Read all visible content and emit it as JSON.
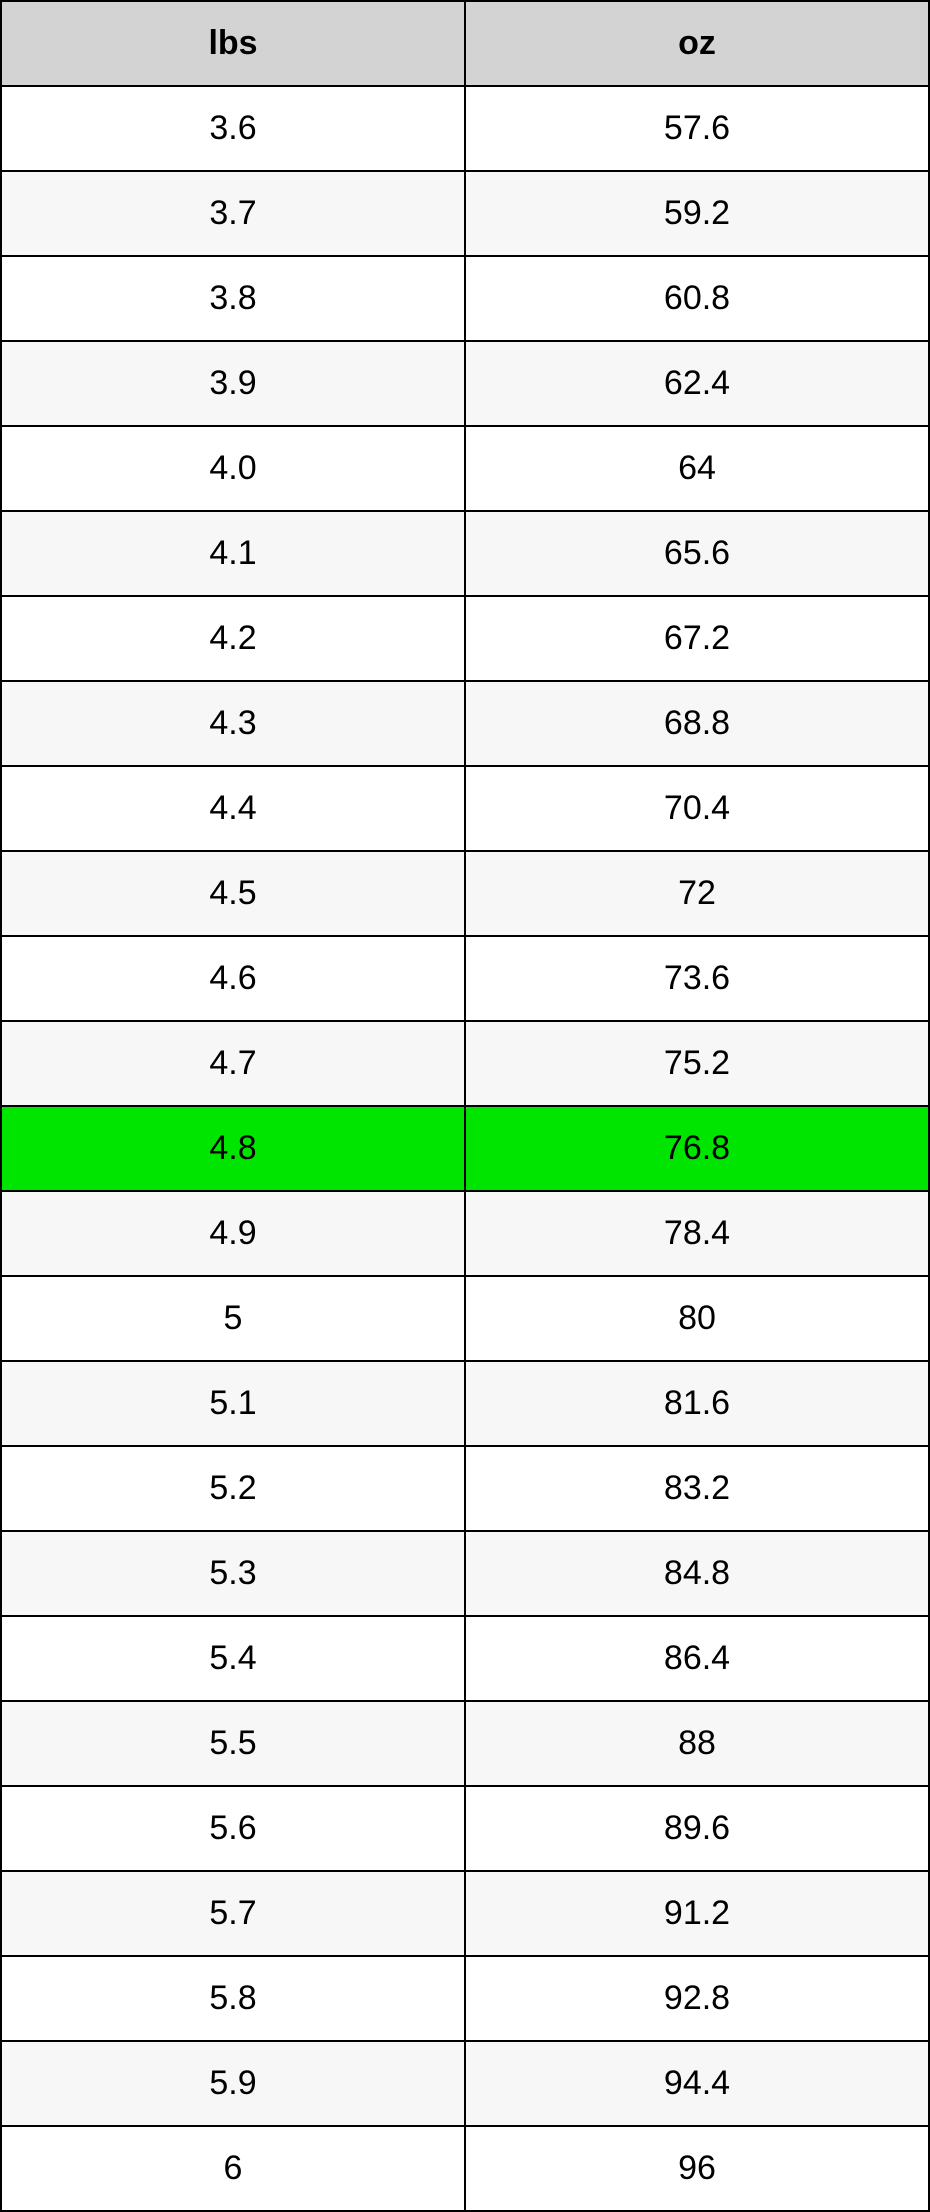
{
  "table": {
    "columns": [
      "lbs",
      "oz"
    ],
    "header_background": "#d3d3d3",
    "border_color": "#000000",
    "row_odd_background": "#ffffff",
    "row_even_background": "#f7f7f7",
    "highlight_background": "#00e500",
    "font_size": 34,
    "highlight_index": 12,
    "rows": [
      {
        "lbs": "3.6",
        "oz": "57.6"
      },
      {
        "lbs": "3.7",
        "oz": "59.2"
      },
      {
        "lbs": "3.8",
        "oz": "60.8"
      },
      {
        "lbs": "3.9",
        "oz": "62.4"
      },
      {
        "lbs": "4.0",
        "oz": "64"
      },
      {
        "lbs": "4.1",
        "oz": "65.6"
      },
      {
        "lbs": "4.2",
        "oz": "67.2"
      },
      {
        "lbs": "4.3",
        "oz": "68.8"
      },
      {
        "lbs": "4.4",
        "oz": "70.4"
      },
      {
        "lbs": "4.5",
        "oz": "72"
      },
      {
        "lbs": "4.6",
        "oz": "73.6"
      },
      {
        "lbs": "4.7",
        "oz": "75.2"
      },
      {
        "lbs": "4.8",
        "oz": "76.8"
      },
      {
        "lbs": "4.9",
        "oz": "78.4"
      },
      {
        "lbs": "5",
        "oz": "80"
      },
      {
        "lbs": "5.1",
        "oz": "81.6"
      },
      {
        "lbs": "5.2",
        "oz": "83.2"
      },
      {
        "lbs": "5.3",
        "oz": "84.8"
      },
      {
        "lbs": "5.4",
        "oz": "86.4"
      },
      {
        "lbs": "5.5",
        "oz": "88"
      },
      {
        "lbs": "5.6",
        "oz": "89.6"
      },
      {
        "lbs": "5.7",
        "oz": "91.2"
      },
      {
        "lbs": "5.8",
        "oz": "92.8"
      },
      {
        "lbs": "5.9",
        "oz": "94.4"
      },
      {
        "lbs": "6",
        "oz": "96"
      }
    ]
  }
}
